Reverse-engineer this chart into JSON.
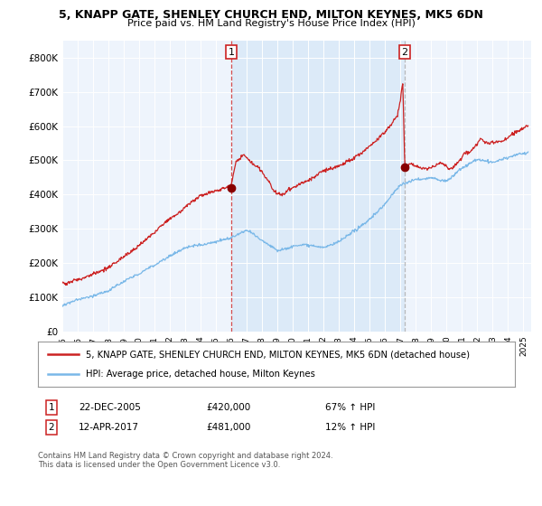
{
  "title": "5, KNAPP GATE, SHENLEY CHURCH END, MILTON KEYNES, MK5 6DN",
  "subtitle": "Price paid vs. HM Land Registry's House Price Index (HPI)",
  "xlim_start": 1995.0,
  "xlim_end": 2025.5,
  "ylim": [
    0,
    850000
  ],
  "yticks": [
    0,
    100000,
    200000,
    300000,
    400000,
    500000,
    600000,
    700000,
    800000
  ],
  "ytick_labels": [
    "£0",
    "£100K",
    "£200K",
    "£300K",
    "£400K",
    "£500K",
    "£600K",
    "£700K",
    "£800K"
  ],
  "sale1_date": 2005.98,
  "sale1_price": 420000,
  "sale1_label": "1",
  "sale2_date": 2017.28,
  "sale2_price": 481000,
  "sale2_label": "2",
  "hpi_color": "#7ab8e8",
  "sale_color": "#cc2222",
  "dashed1_color": "#cc2222",
  "dashed2_color": "#aaaaaa",
  "shade_color": "#ddeeff",
  "legend_sale_label": "5, KNAPP GATE, SHENLEY CHURCH END, MILTON KEYNES, MK5 6DN (detached house)",
  "legend_hpi_label": "HPI: Average price, detached house, Milton Keynes",
  "annotation1_date": "22-DEC-2005",
  "annotation1_price": "£420,000",
  "annotation1_hpi": "67% ↑ HPI",
  "annotation2_date": "12-APR-2017",
  "annotation2_price": "£481,000",
  "annotation2_hpi": "12% ↑ HPI",
  "footnote": "Contains HM Land Registry data © Crown copyright and database right 2024.\nThis data is licensed under the Open Government Licence v3.0.",
  "background_color": "#ffffff",
  "plot_bg_color": "#eef4fc"
}
